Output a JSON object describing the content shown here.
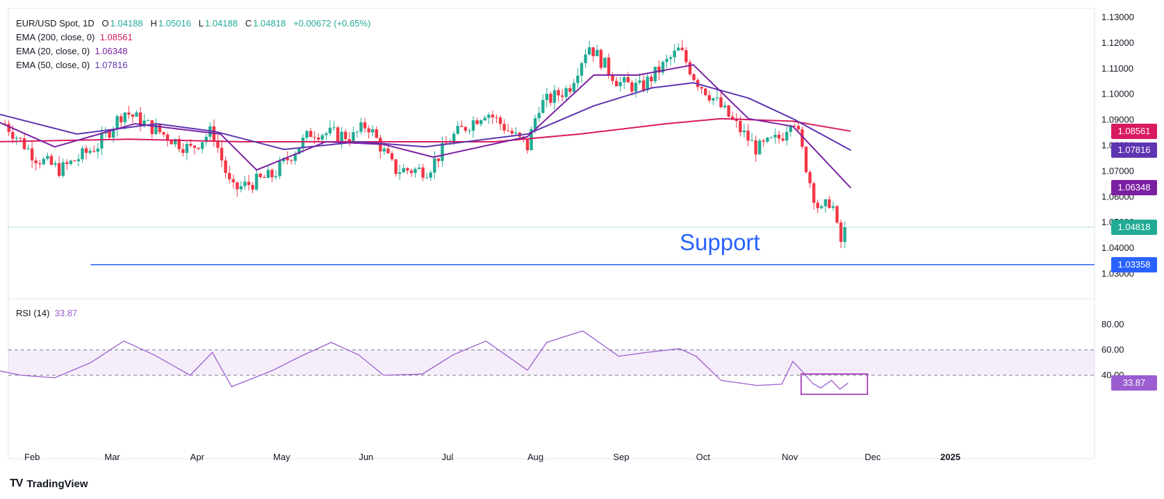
{
  "header": {
    "symbol": "EUR/USD Spot, 1D",
    "o_label": "O",
    "o": "1.04188",
    "h_label": "H",
    "h": "1.05016",
    "l_label": "L",
    "l": "1.04188",
    "c_label": "C",
    "c": "1.04818",
    "change": "+0.00672 (+0.65%)"
  },
  "legend": [
    {
      "label": "EMA (200, close, 0)",
      "value": "1.08561",
      "color": "#d81b60"
    },
    {
      "label": "EMA (20, close, 0)",
      "value": "1.06348",
      "color": "#7b1fa2"
    },
    {
      "label": "EMA (50, close, 0)",
      "value": "1.07816",
      "color": "#5e35b1"
    }
  ],
  "rsi_legend": {
    "label": "RSI (14)",
    "value": "33.87"
  },
  "annotation": {
    "text": "Support",
    "value": 1.03358
  },
  "price_tags": [
    {
      "text": "1.08561",
      "value": 1.08561,
      "color": "#d81b60"
    },
    {
      "text": "1.07816",
      "value": 1.07816,
      "color": "#5e35b1"
    },
    {
      "text": "1.06348",
      "value": 1.06348,
      "color": "#7b1fa2"
    },
    {
      "text": "1.04818",
      "value": 1.04818,
      "color": "#22ab94"
    },
    {
      "text": "1.03358",
      "value": 1.03358,
      "color": "#2962ff"
    }
  ],
  "rsi_tag": {
    "text": "33.87",
    "value": 33.87,
    "color": "#9c5dd0"
  },
  "branding": {
    "logo_text": "TradingView",
    "logo_mark": "TV"
  },
  "colors": {
    "up": "#22ab94",
    "down": "#f23645",
    "rsi": "#9c5dd0",
    "support": "#2962ff",
    "ema200": "#d81b60",
    "ema20": "#7b1fa2",
    "ema50": "#5e35b1"
  },
  "chart_data": {
    "type": "candlestick",
    "x_ticks": [
      "Feb",
      "Mar",
      "Apr",
      "May",
      "Jun",
      "Jul",
      "Aug",
      "Sep",
      "Oct",
      "Nov",
      "Dec",
      "2025"
    ],
    "y_ticks": [
      "1.13000",
      "1.12000",
      "1.11000",
      "1.10000",
      "1.09000",
      "1.08000",
      "1.07000",
      "1.06000",
      "1.05000",
      "1.04000",
      "1.03000"
    ],
    "price_range": [
      1.028,
      1.132
    ],
    "rsi_ticks": [
      "80.00",
      "60.00",
      "40.00"
    ],
    "rsi_range": [
      20,
      82
    ],
    "rsi_band": [
      40,
      60
    ],
    "close_path": [
      [
        "Jan 25",
        1.0885
      ],
      [
        "Feb 5",
        1.0755
      ],
      [
        "Feb 14",
        1.0705
      ],
      [
        "Feb 28",
        1.0805
      ],
      [
        "Mar 8",
        1.0935
      ],
      [
        "Mar 19",
        1.0865
      ],
      [
        "Apr 1",
        1.0785
      ],
      [
        "Apr 9",
        1.0858
      ],
      [
        "Apr 16",
        1.0625
      ],
      [
        "May 1",
        1.0685
      ],
      [
        "May 15",
        1.0855
      ],
      [
        "May 30",
        1.0835
      ],
      [
        "Jun 4",
        1.0885
      ],
      [
        "Jun 14",
        1.0705
      ],
      [
        "Jun 26",
        1.0705
      ],
      [
        "Jul 5",
        1.0835
      ],
      [
        "Jul 17",
        1.0935
      ],
      [
        "Aug 1",
        1.0795
      ],
      [
        "Aug 5",
        1.0955
      ],
      [
        "Aug 16",
        1.1025
      ],
      [
        "Aug 23",
        1.1195
      ],
      [
        "Sep 3",
        1.1045
      ],
      [
        "Sep 11",
        1.1025
      ],
      [
        "Sep 25",
        1.1175
      ],
      [
        "Oct 1",
        1.1055
      ],
      [
        "Oct 8",
        1.0975
      ],
      [
        "Oct 23",
        1.0785
      ],
      [
        "Nov 1",
        1.0835
      ],
      [
        "Nov 5",
        1.0925
      ],
      [
        "Nov 12",
        1.0625
      ],
      [
        "Nov 15",
        1.0535
      ],
      [
        "Nov 19",
        1.0595
      ],
      [
        "Nov 21",
        1.0475
      ],
      [
        "Nov 22",
        1.0415
      ],
      [
        "Nov 25",
        1.04818
      ]
    ],
    "ema200_path": [
      [
        "Jan 22",
        1.0815
      ],
      [
        "Mar 10",
        1.0825
      ],
      [
        "Apr 20",
        1.0815
      ],
      [
        "Jun 10",
        1.0815
      ],
      [
        "Jul 20",
        1.0815
      ],
      [
        "Aug 20",
        1.0845
      ],
      [
        "Sep 20",
        1.0885
      ],
      [
        "Oct 10",
        1.0905
      ],
      [
        "Nov 5",
        1.0895
      ],
      [
        "Nov 26",
        1.08561
      ]
    ],
    "ema50_path": [
      [
        "Jan 22",
        1.0925
      ],
      [
        "Feb 20",
        1.0845
      ],
      [
        "Mar 20",
        1.0885
      ],
      [
        "Apr 10",
        1.0855
      ],
      [
        "May 5",
        1.0785
      ],
      [
        "Jun 1",
        1.0815
      ],
      [
        "Jun 25",
        1.0795
      ],
      [
        "Aug 1",
        1.0845
      ],
      [
        "Aug 25",
        1.0955
      ],
      [
        "Sep 15",
        1.1025
      ],
      [
        "Sep 30",
        1.1045
      ],
      [
        "Oct 20",
        1.0985
      ],
      [
        "Nov 5",
        1.0905
      ],
      [
        "Nov 26",
        1.07816
      ]
    ],
    "ema20_path": [
      [
        "Jan 22",
        1.0895
      ],
      [
        "Feb 12",
        1.0795
      ],
      [
        "Mar 12",
        1.0885
      ],
      [
        "Apr 12",
        1.0845
      ],
      [
        "Apr 25",
        1.0705
      ],
      [
        "May 20",
        1.0815
      ],
      [
        "Jun 10",
        1.0805
      ],
      [
        "Jun 28",
        1.0755
      ],
      [
        "Aug 1",
        1.0835
      ],
      [
        "Aug 25",
        1.1075
      ],
      [
        "Sep 10",
        1.1075
      ],
      [
        "Sep 30",
        1.1115
      ],
      [
        "Oct 20",
        1.0905
      ],
      [
        "Nov 5",
        1.0875
      ],
      [
        "Nov 26",
        1.06348
      ]
    ],
    "rsi_path": [
      [
        "Jan 22",
        44
      ],
      [
        "Jan 31",
        40
      ],
      [
        "Feb 12",
        38
      ],
      [
        "Feb 25",
        50
      ],
      [
        "Mar 8",
        67
      ],
      [
        "Mar 19",
        56
      ],
      [
        "Apr 1",
        40
      ],
      [
        "Apr 9",
        58
      ],
      [
        "Apr 16",
        31
      ],
      [
        "May 1",
        44
      ],
      [
        "May 10",
        54
      ],
      [
        "May 22",
        66
      ],
      [
        "Jun 1",
        56
      ],
      [
        "Jun 10",
        40
      ],
      [
        "Jun 24",
        41
      ],
      [
        "Jul 5",
        56
      ],
      [
        "Jul 17",
        67
      ],
      [
        "Aug 1",
        44
      ],
      [
        "Aug 8",
        66
      ],
      [
        "Aug 21",
        75
      ],
      [
        "Sep 3",
        55
      ],
      [
        "Sep 13",
        58
      ],
      [
        "Sep 25",
        61
      ],
      [
        "Oct 1",
        55
      ],
      [
        "Oct 10",
        36
      ],
      [
        "Oct 23",
        32
      ],
      [
        "Nov 1",
        33
      ],
      [
        "Nov 5",
        51
      ],
      [
        "Nov 8",
        44
      ],
      [
        "Nov 12",
        34
      ],
      [
        "Nov 15",
        30
      ],
      [
        "Nov 19",
        36
      ],
      [
        "Nov 22",
        29
      ],
      [
        "Nov 25",
        33.87
      ]
    ],
    "highlight_box": {
      "x_from": "Nov 8",
      "x_to": "Dec 2",
      "rsi_from": 25,
      "rsi_to": 41
    }
  }
}
